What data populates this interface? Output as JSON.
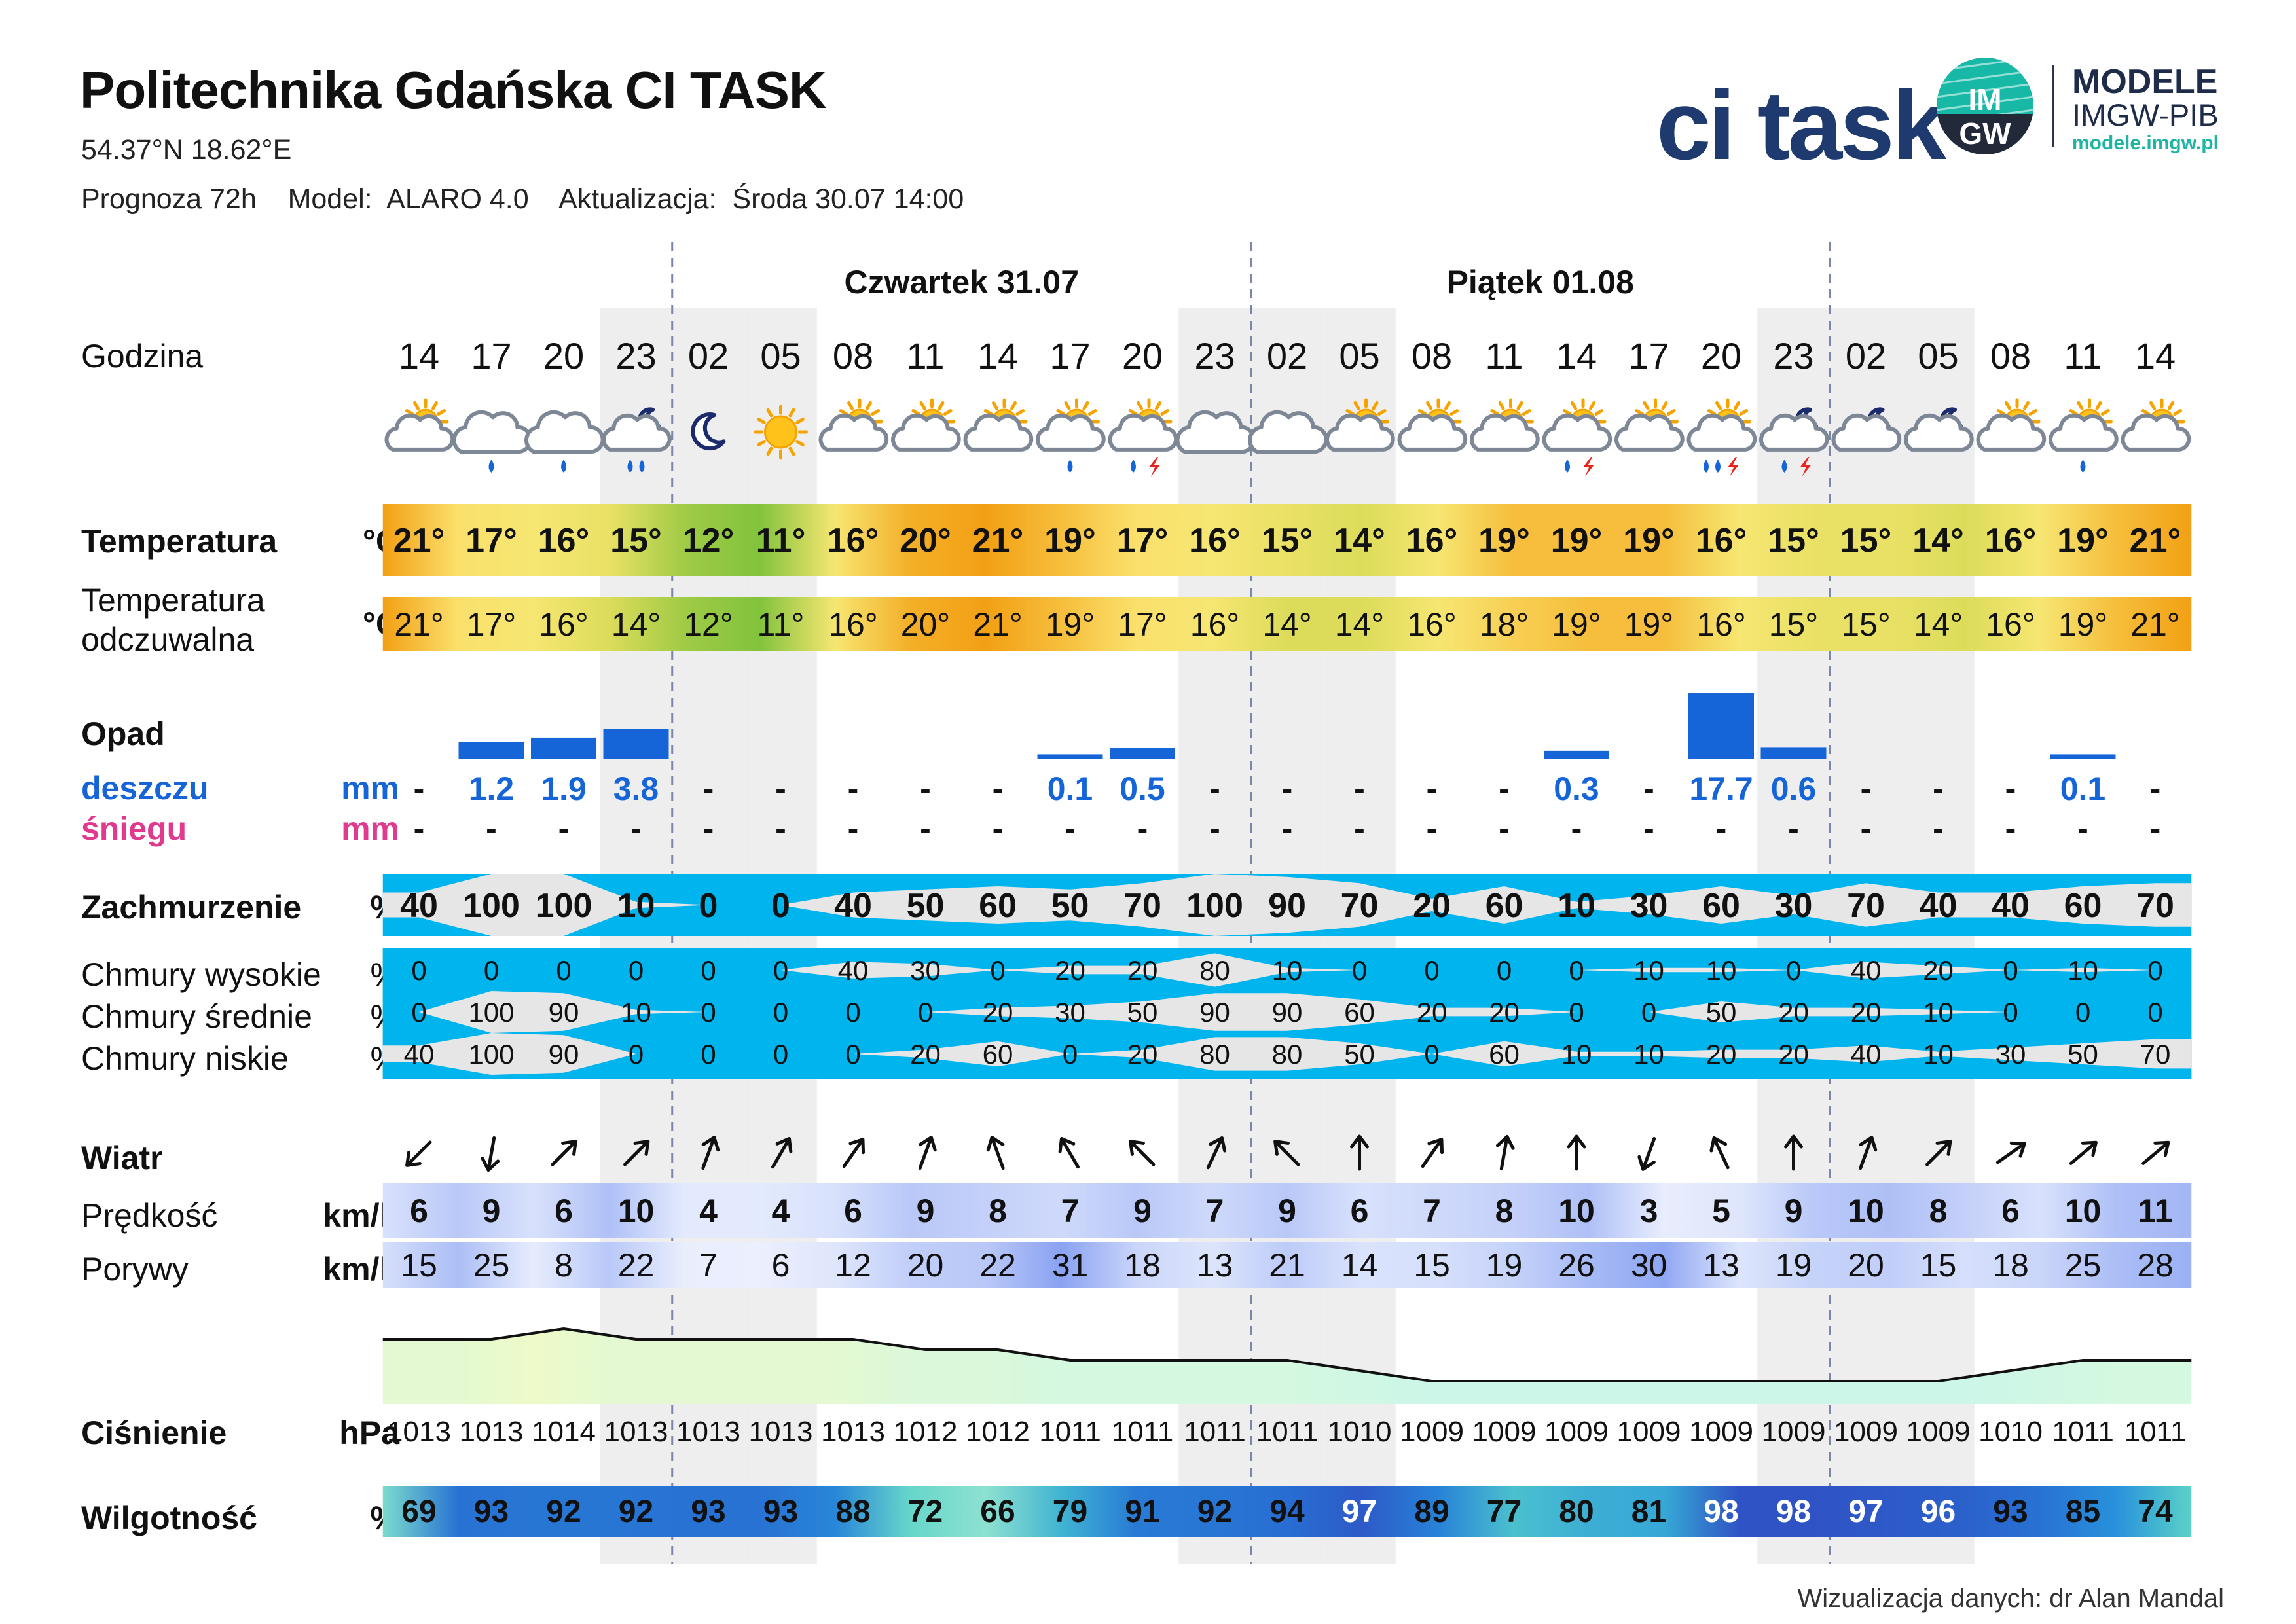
{
  "header": {
    "title": "Politechnika Gdańska CI TASK",
    "coords": "54.37°N  18.62°E",
    "forecast_label": "Prognoza 72h",
    "model_label": "Model:",
    "model_value": "ALARO 4.0",
    "update_label": "Aktualizacja:",
    "update_value": "Środa 30.07 14:00"
  },
  "logos": {
    "ci_task": "ci task",
    "imgw_badge": "IM GW",
    "modele": "MODELE",
    "imgw_pib": "IMGW-PIB",
    "url": "modele.imgw.pl"
  },
  "days": [
    "Czwartek 31.07",
    "Piątek 01.08"
  ],
  "labels": {
    "hour": "Godzina",
    "temp": "Temperatura",
    "feel1": "Temperatura",
    "feel2": "odczuwalna",
    "precip": "Opad",
    "rain": "deszczu",
    "snow": "śniegu",
    "cloud": "Zachmurzenie",
    "high": "Chmury wysokie",
    "mid": "Chmury średnie",
    "low": "Chmury niskie",
    "wind": "Wiatr",
    "speed": "Prędkość",
    "gust": "Porywy",
    "pressure": "Ciśnienie",
    "humidity": "Wilgotność"
  },
  "units": {
    "temp": "°C",
    "mm": "mm",
    "pct": "%",
    "kmh": "km/h",
    "hpa": "hPa"
  },
  "hours": [
    "14",
    "17",
    "20",
    "23",
    "02",
    "05",
    "08",
    "11",
    "14",
    "17",
    "20",
    "23",
    "02",
    "05",
    "08",
    "11",
    "14",
    "17",
    "20",
    "23",
    "02",
    "05",
    "08",
    "11",
    "14"
  ],
  "icons": [
    "sun-cloud-icon",
    "cloud-rain-icon",
    "cloud-rain-icon",
    "moon-cloud-rain-icon",
    "moon-icon",
    "sun-icon",
    "sun-cloud-icon",
    "sun-cloud-icon",
    "sun-cloud-icon",
    "sun-cloud-rain-icon",
    "sun-cloud-storm-icon",
    "cloud-icon",
    "cloud-icon",
    "sun-cloud-icon",
    "sun-cloud-icon",
    "sun-cloud-icon",
    "sun-cloud-storm-icon",
    "sun-cloud-icon",
    "sun-cloud-storm-icon",
    "moon-cloud-storm-icon",
    "moon-cloud-icon",
    "moon-cloud-icon",
    "sun-cloud-icon",
    "sun-cloud-rain-icon",
    "sun-cloud-icon"
  ],
  "temperature": [
    "21°",
    "17°",
    "16°",
    "15°",
    "12°",
    "11°",
    "16°",
    "20°",
    "21°",
    "19°",
    "17°",
    "16°",
    "15°",
    "14°",
    "16°",
    "19°",
    "19°",
    "19°",
    "16°",
    "15°",
    "15°",
    "14°",
    "16°",
    "19°",
    "21°"
  ],
  "feels_like": [
    "21°",
    "17°",
    "16°",
    "14°",
    "12°",
    "11°",
    "16°",
    "20°",
    "21°",
    "19°",
    "17°",
    "16°",
    "14°",
    "14°",
    "16°",
    "18°",
    "19°",
    "19°",
    "16°",
    "15°",
    "15°",
    "14°",
    "16°",
    "19°",
    "21°"
  ],
  "rain": [
    "-",
    "1.2",
    "1.9",
    "3.8",
    "-",
    "-",
    "-",
    "-",
    "-",
    "0.1",
    "0.5",
    "-",
    "-",
    "-",
    "-",
    "-",
    "0.3",
    "-",
    "17.7",
    "0.6",
    "-",
    "-",
    "-",
    "0.1",
    "-"
  ],
  "snow": [
    "-",
    "-",
    "-",
    "-",
    "-",
    "-",
    "-",
    "-",
    "-",
    "-",
    "-",
    "-",
    "-",
    "-",
    "-",
    "-",
    "-",
    "-",
    "-",
    "-",
    "-",
    "-",
    "-",
    "-",
    "-"
  ],
  "cloud_total": [
    "40",
    "100",
    "100",
    "10",
    "0",
    "0",
    "40",
    "50",
    "60",
    "50",
    "70",
    "100",
    "90",
    "70",
    "20",
    "60",
    "10",
    "30",
    "60",
    "30",
    "70",
    "40",
    "40",
    "60",
    "70"
  ],
  "cloud_high": [
    "0",
    "0",
    "0",
    "0",
    "0",
    "0",
    "40",
    "30",
    "0",
    "20",
    "20",
    "80",
    "10",
    "0",
    "0",
    "0",
    "0",
    "10",
    "10",
    "0",
    "40",
    "20",
    "0",
    "10",
    "0"
  ],
  "cloud_mid": [
    "0",
    "100",
    "90",
    "10",
    "0",
    "0",
    "0",
    "0",
    "20",
    "30",
    "50",
    "90",
    "90",
    "60",
    "20",
    "20",
    "0",
    "0",
    "50",
    "20",
    "20",
    "10",
    "0",
    "0",
    "0"
  ],
  "cloud_low": [
    "40",
    "100",
    "90",
    "0",
    "0",
    "0",
    "0",
    "20",
    "60",
    "0",
    "20",
    "80",
    "80",
    "50",
    "0",
    "60",
    "10",
    "10",
    "20",
    "20",
    "40",
    "10",
    "30",
    "50",
    "70"
  ],
  "wind_dir_deg": [
    225,
    190,
    45,
    45,
    20,
    30,
    35,
    20,
    340,
    330,
    315,
    25,
    315,
    0,
    35,
    10,
    0,
    200,
    335,
    0,
    20,
    45,
    55,
    50,
    50
  ],
  "wind_speed": [
    "6",
    "9",
    "6",
    "10",
    "4",
    "4",
    "6",
    "9",
    "8",
    "7",
    "9",
    "7",
    "9",
    "6",
    "7",
    "8",
    "10",
    "3",
    "5",
    "9",
    "10",
    "8",
    "6",
    "10",
    "11"
  ],
  "wind_gust": [
    "15",
    "25",
    "8",
    "22",
    "7",
    "6",
    "12",
    "20",
    "22",
    "31",
    "18",
    "13",
    "21",
    "14",
    "15",
    "19",
    "26",
    "30",
    "13",
    "19",
    "20",
    "15",
    "18",
    "25",
    "28"
  ],
  "pressure": [
    "1013",
    "1013",
    "1014",
    "1013",
    "1013",
    "1013",
    "1013",
    "1012",
    "1012",
    "1011",
    "1011",
    "1011",
    "1011",
    "1010",
    "1009",
    "1009",
    "1009",
    "1009",
    "1009",
    "1009",
    "1009",
    "1009",
    "1010",
    "1011",
    "1011"
  ],
  "humidity": [
    "69",
    "93",
    "92",
    "92",
    "93",
    "93",
    "88",
    "72",
    "66",
    "79",
    "91",
    "92",
    "94",
    "97",
    "89",
    "77",
    "80",
    "81",
    "98",
    "98",
    "97",
    "96",
    "93",
    "85",
    "74"
  ],
  "colors": {
    "rain": "#1565d8",
    "snow": "#e0398d",
    "cloud_blue": "#00b4ee",
    "cloud_grey": "#e6e6e6",
    "night_shade": "#eeeeee"
  },
  "credit": "Wizualizacja danych: dr Alan Mandal"
}
